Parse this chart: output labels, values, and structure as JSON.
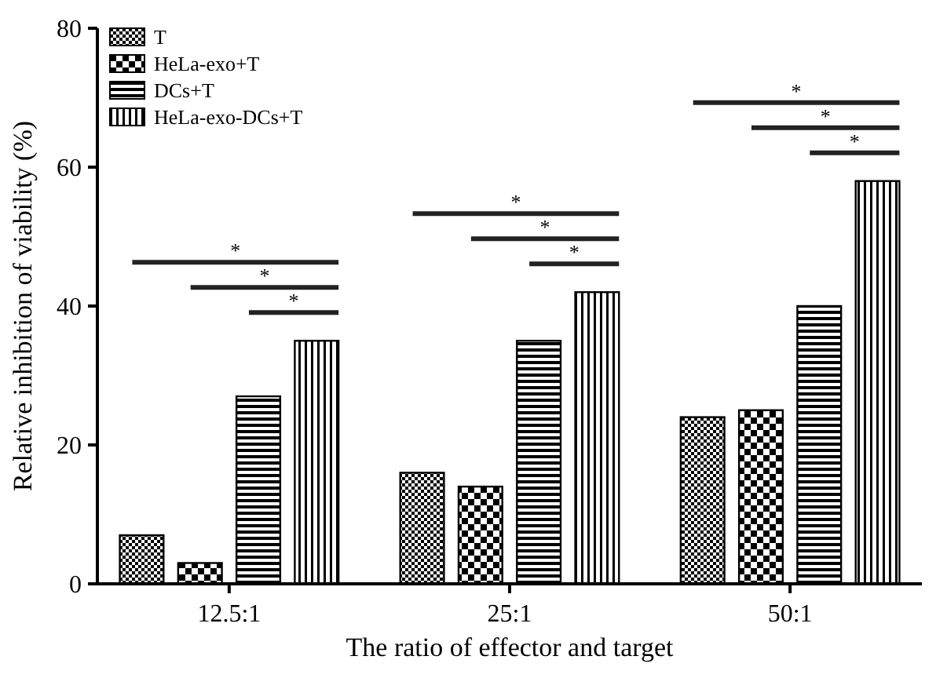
{
  "chart_data": {
    "type": "bar",
    "xlabel": "The ratio of effector and target",
    "ylabel": "Relative inhibition of viability (%)",
    "categories": [
      "12.5:1",
      "25:1",
      "50:1"
    ],
    "ylim": [
      0,
      80
    ],
    "yticks": [
      0,
      20,
      40,
      60,
      80
    ],
    "grid": false,
    "legend": "top left",
    "series": [
      {
        "name": "T",
        "color": "#000000",
        "values": [
          7,
          16,
          24
        ]
      },
      {
        "name": "HeLa-exo+T",
        "color": "#000000",
        "values": [
          3,
          14,
          25
        ]
      },
      {
        "name": "DCs+T",
        "color": "#000000",
        "values": [
          27,
          35,
          40
        ]
      },
      {
        "name": "HeLa-exo-DCs+T",
        "color": "#000000",
        "values": [
          35,
          42,
          58
        ]
      }
    ],
    "annotations": [
      "*",
      "*",
      "*",
      "*",
      "*",
      "*",
      "*",
      "*",
      "*"
    ]
  }
}
